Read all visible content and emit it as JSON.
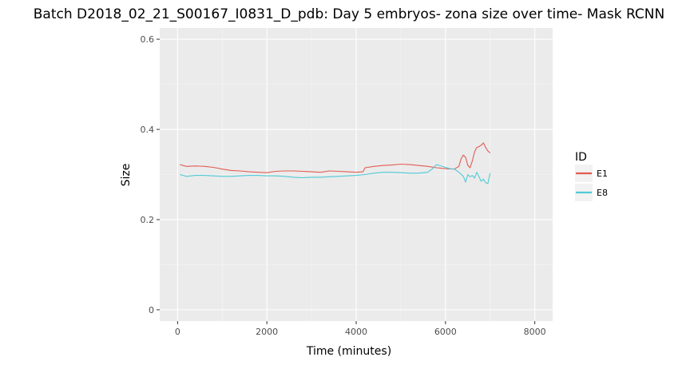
{
  "chart_data": {
    "type": "line",
    "title": "Batch D2018_02_21_S00167_I0831_D_pdb: Day 5 embryos- zona size over time- Mask RCNN",
    "xlabel": "Time (minutes)",
    "ylabel": "Size",
    "xlim": [
      -400,
      8400
    ],
    "ylim": [
      -0.025,
      0.625
    ],
    "xticks": [
      0,
      2000,
      4000,
      6000,
      8000
    ],
    "xtick_labels": [
      "0",
      "2000",
      "4000",
      "6000",
      "8000"
    ],
    "yticks": [
      0,
      0.2,
      0.4,
      0.6
    ],
    "ytick_labels": [
      "0",
      "0.2",
      "0.4",
      "0.6"
    ],
    "grid": true,
    "legend": {
      "title": "ID",
      "position": "right"
    },
    "series": [
      {
        "name": "E1",
        "color": "#e15c52",
        "x": [
          50,
          200,
          400,
          600,
          800,
          1000,
          1200,
          1400,
          1600,
          1800,
          2000,
          2200,
          2400,
          2600,
          2800,
          3000,
          3200,
          3400,
          3600,
          3800,
          4000,
          4150,
          4200,
          4400,
          4600,
          4800,
          5000,
          5200,
          5400,
          5600,
          5800,
          6000,
          6200,
          6300,
          6350,
          6400,
          6450,
          6500,
          6550,
          6600,
          6650,
          6700,
          6750,
          6800,
          6850,
          6900,
          6950,
          7000
        ],
        "y": [
          0.322,
          0.318,
          0.319,
          0.318,
          0.316,
          0.312,
          0.309,
          0.308,
          0.306,
          0.305,
          0.304,
          0.307,
          0.308,
          0.308,
          0.307,
          0.306,
          0.305,
          0.308,
          0.307,
          0.306,
          0.305,
          0.306,
          0.315,
          0.318,
          0.32,
          0.321,
          0.323,
          0.322,
          0.32,
          0.318,
          0.315,
          0.313,
          0.312,
          0.318,
          0.335,
          0.343,
          0.338,
          0.32,
          0.315,
          0.33,
          0.35,
          0.36,
          0.362,
          0.365,
          0.37,
          0.36,
          0.352,
          0.348
        ]
      },
      {
        "name": "E8",
        "color": "#4fcad6",
        "x": [
          50,
          200,
          400,
          600,
          800,
          1000,
          1200,
          1400,
          1600,
          1800,
          2000,
          2200,
          2400,
          2600,
          2800,
          3000,
          3200,
          3400,
          3600,
          3800,
          4000,
          4200,
          4400,
          4600,
          4800,
          5000,
          5200,
          5400,
          5600,
          5700,
          5800,
          6000,
          6100,
          6200,
          6300,
          6400,
          6450,
          6500,
          6550,
          6600,
          6650,
          6700,
          6750,
          6800,
          6850,
          6900,
          6950,
          7000
        ],
        "y": [
          0.3,
          0.296,
          0.298,
          0.298,
          0.297,
          0.296,
          0.296,
          0.297,
          0.298,
          0.298,
          0.297,
          0.297,
          0.296,
          0.294,
          0.293,
          0.294,
          0.294,
          0.295,
          0.296,
          0.297,
          0.298,
          0.3,
          0.303,
          0.305,
          0.305,
          0.304,
          0.303,
          0.303,
          0.305,
          0.312,
          0.322,
          0.316,
          0.313,
          0.312,
          0.305,
          0.296,
          0.283,
          0.3,
          0.295,
          0.298,
          0.292,
          0.305,
          0.295,
          0.285,
          0.29,
          0.282,
          0.28,
          0.303
        ]
      }
    ]
  }
}
